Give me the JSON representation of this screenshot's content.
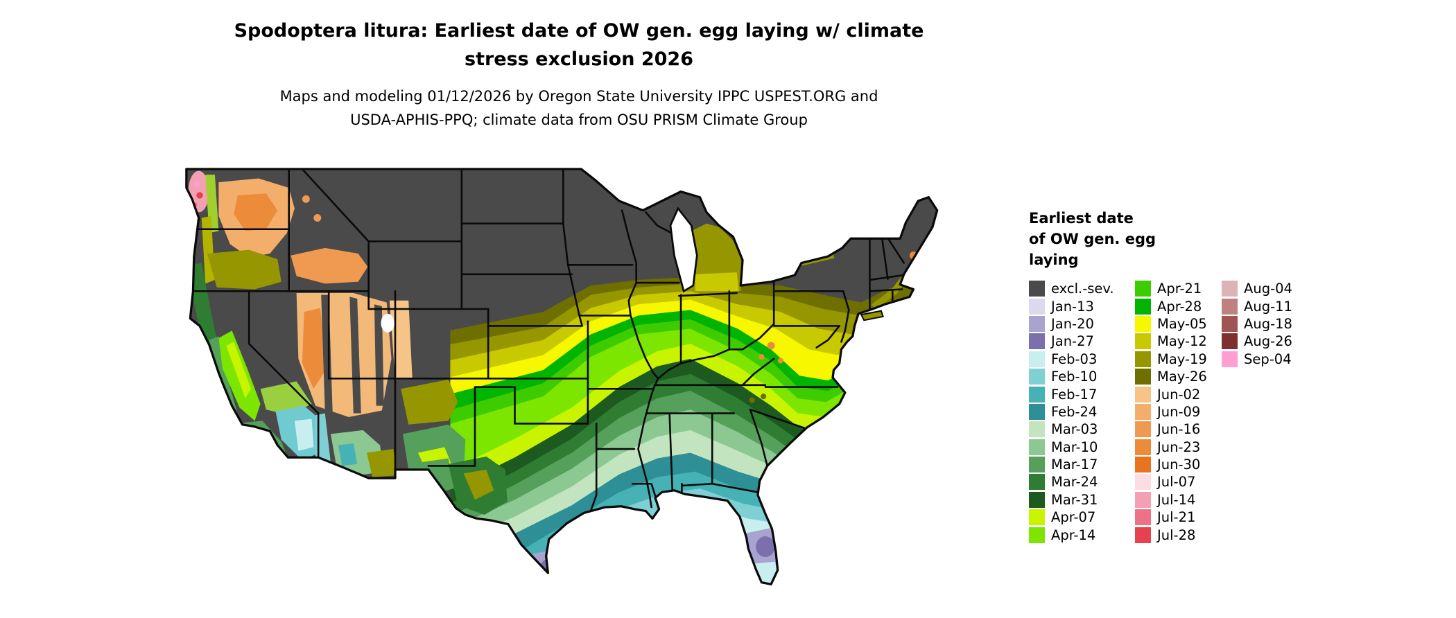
{
  "title": {
    "line1": "Spodoptera litura: Earliest date of OW gen. egg laying w/ climate",
    "line2": "stress exclusion 2026"
  },
  "subtitle": {
    "line1": "Maps and modeling 01/12/2026 by Oregon State University IPPC USPEST.ORG and",
    "line2": "USDA-APHIS-PPQ; climate data from OSU PRISM Climate Group"
  },
  "legend": {
    "title_lines": [
      "Earliest date",
      "of OW gen. egg",
      "laying"
    ],
    "columns": [
      [
        {
          "label": "excl.-sev.",
          "color": "#4a4a4a"
        },
        {
          "label": "Jan-13",
          "color": "#dcd9ee"
        },
        {
          "label": "Jan-20",
          "color": "#a9a3cf"
        },
        {
          "label": "Jan-27",
          "color": "#7b6fae"
        },
        {
          "label": "Feb-03",
          "color": "#c9eef0"
        },
        {
          "label": "Feb-10",
          "color": "#7fd0d4"
        },
        {
          "label": "Feb-17",
          "color": "#46b2b6"
        },
        {
          "label": "Feb-24",
          "color": "#2e8f96"
        },
        {
          "label": "Mar-03",
          "color": "#c2e5bf"
        },
        {
          "label": "Mar-10",
          "color": "#8cc891"
        },
        {
          "label": "Mar-17",
          "color": "#55a05a"
        },
        {
          "label": "Mar-24",
          "color": "#2e7d32"
        },
        {
          "label": "Mar-31",
          "color": "#1d5a20"
        },
        {
          "label": "Apr-07",
          "color": "#c8f400"
        },
        {
          "label": "Apr-14",
          "color": "#7ce600"
        }
      ],
      [
        {
          "label": "Apr-21",
          "color": "#3ecc00"
        },
        {
          "label": "Apr-28",
          "color": "#00b400"
        },
        {
          "label": "May-05",
          "color": "#f7f700"
        },
        {
          "label": "May-12",
          "color": "#c9c900"
        },
        {
          "label": "May-19",
          "color": "#969600"
        },
        {
          "label": "May-26",
          "color": "#6f6f00"
        },
        {
          "label": "Jun-02",
          "color": "#f6c487"
        },
        {
          "label": "Jun-09",
          "color": "#f3ae6b"
        },
        {
          "label": "Jun-16",
          "color": "#ef9a50"
        },
        {
          "label": "Jun-23",
          "color": "#ec8c3a"
        },
        {
          "label": "Jun-30",
          "color": "#e87420"
        },
        {
          "label": "Jul-07",
          "color": "#fbdde2"
        },
        {
          "label": "Jul-14",
          "color": "#f4a0b4"
        },
        {
          "label": "Jul-21",
          "color": "#ee7287"
        },
        {
          "label": "Jul-28",
          "color": "#e8414e"
        }
      ],
      [
        {
          "label": "Aug-04",
          "color": "#dcb4b4"
        },
        {
          "label": "Aug-11",
          "color": "#c08080"
        },
        {
          "label": "Aug-18",
          "color": "#a05454"
        },
        {
          "label": "Aug-26",
          "color": "#7e3030"
        },
        {
          "label": "Sep-04",
          "color": "#ff9ed2"
        }
      ]
    ]
  }
}
